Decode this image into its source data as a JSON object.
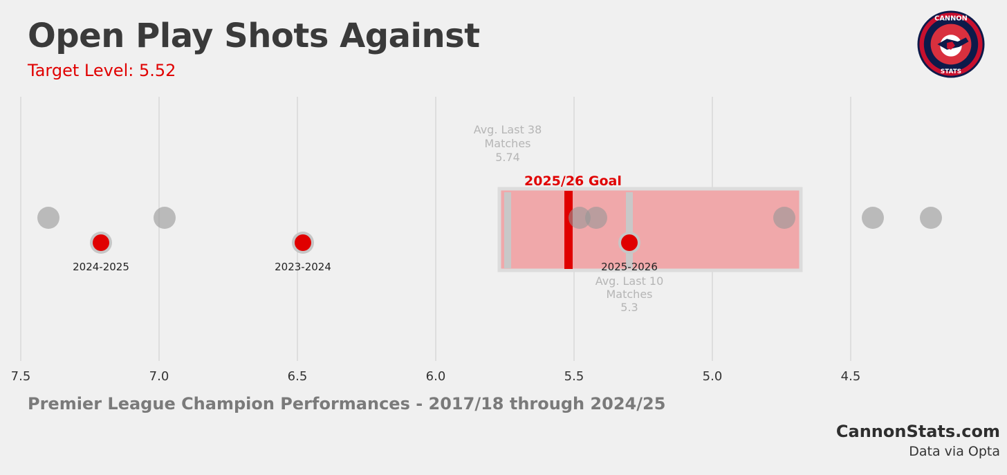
{
  "title": "Open Play Shots Against",
  "subtitle": "Target Level: 5.52",
  "footer_caption": "Premier League Champion Performances - 2017/18 through 2024/25",
  "brand": "CannonStats.com",
  "source": "Data via Opta",
  "logo": {
    "top_text": "CANNON",
    "bottom_text": "STATS",
    "icon": "cannon-stats-logo"
  },
  "colors": {
    "background": "#f0f0f0",
    "title": "#3a3a3a",
    "accent_red": "#e00000",
    "band_fill": "#f0a8aa",
    "band_border": "#dcdcdc",
    "grey_dot": "#b3b3b3",
    "muted_text": "#b5b5b5"
  },
  "chart_data": {
    "type": "scatter",
    "x_axis": {
      "range": [
        7.5,
        4.0
      ],
      "reversed": true,
      "ticks": [
        7.5,
        7.0,
        6.5,
        6.0,
        5.5,
        5.0,
        4.5
      ],
      "tick_labels": [
        "7.5",
        "7.0",
        "6.5",
        "6.0",
        "5.5",
        "5.0",
        "4.5"
      ],
      "grid": true
    },
    "champion_points": [
      7.4,
      6.98,
      5.48,
      5.42,
      4.74,
      4.42,
      4.21
    ],
    "arsenal_seasons": [
      {
        "season": "2024-2025",
        "value": 7.21
      },
      {
        "season": "2023-2024",
        "value": 6.48
      },
      {
        "season": "2025-2026",
        "value": 5.3
      }
    ],
    "range_band": [
      5.77,
      4.68
    ],
    "goal": {
      "label": "2025/26 Goal",
      "value": 5.52
    },
    "avg_last_38": {
      "label": [
        "Avg. Last 38",
        "Matches"
      ],
      "value_text": "5.74",
      "value": 5.74
    },
    "avg_last_10": {
      "label": [
        "Avg. Last 10",
        "Matches"
      ],
      "value_text": "5.3",
      "value": 5.3
    }
  }
}
